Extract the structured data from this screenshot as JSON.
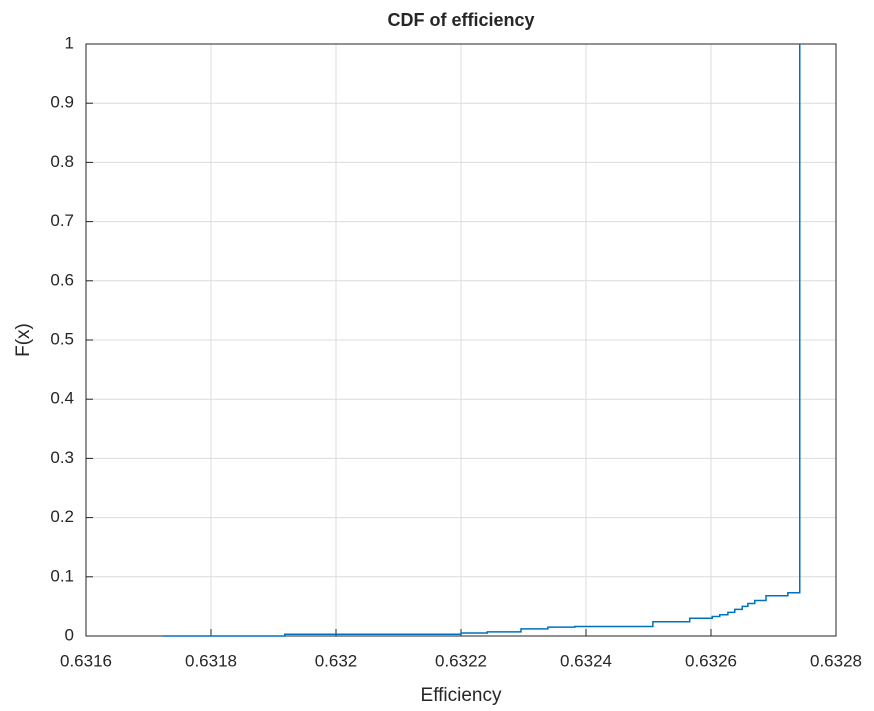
{
  "chart_data": {
    "type": "line",
    "step": "post",
    "title": "CDF of efficiency",
    "x_label": "Efficiency",
    "y_label": "F(x)",
    "series": [
      {
        "name": "F(x)",
        "color": "#0072bd",
        "x": [
          0.631723,
          0.631918,
          0.6322,
          0.632242,
          0.632296,
          0.632339,
          0.632382,
          0.632507,
          0.632566,
          0.632602,
          0.632614,
          0.632627,
          0.632638,
          0.63265,
          0.632659,
          0.63267,
          0.632688,
          0.632723,
          0.632742
        ],
        "values": [
          0,
          0.003,
          0.005,
          0.007,
          0.012,
          0.015,
          0.016,
          0.024,
          0.03,
          0.033,
          0.036,
          0.04,
          0.045,
          0.05,
          0.055,
          0.06,
          0.068,
          0.073,
          1
        ]
      }
    ],
    "xlim": [
      0.6316,
      0.6328
    ],
    "xticks": [
      0.6316,
      0.6318,
      0.632,
      0.6322,
      0.6324,
      0.6326,
      0.6328
    ],
    "ylim": [
      0,
      1
    ],
    "yticks": [
      0,
      0.1,
      0.2,
      0.3,
      0.4,
      0.5,
      0.6,
      0.7,
      0.8,
      0.9,
      1
    ],
    "grid": true
  }
}
